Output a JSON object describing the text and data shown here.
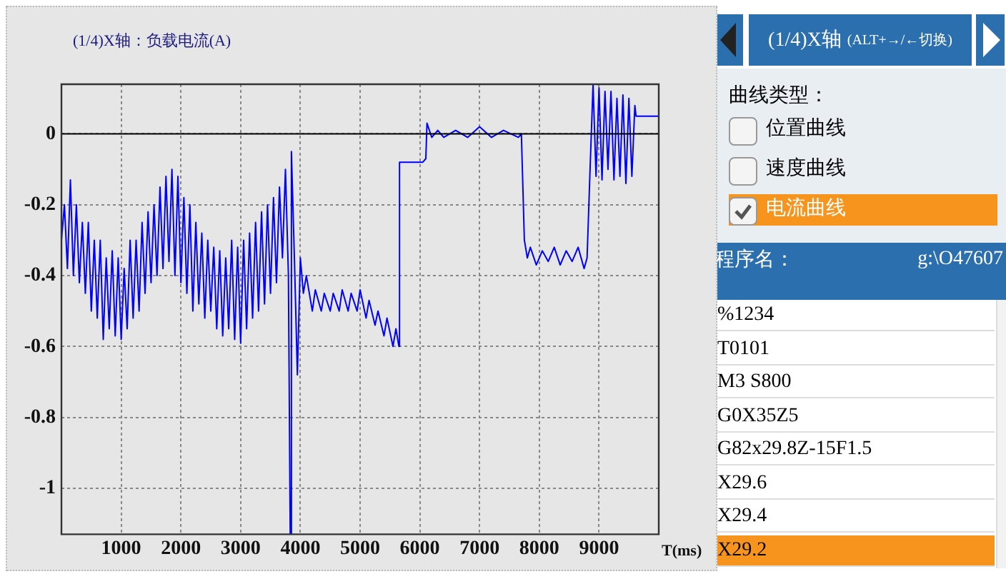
{
  "chart_data": [
    {
      "type": "line",
      "title": "(1/4)X轴：负载电流(A)",
      "xlabel": "T(ms)",
      "xlim": [
        0,
        10000
      ],
      "xticks": [
        1000,
        2000,
        3000,
        4000,
        5000,
        6000,
        7000,
        8000,
        9000
      ],
      "ylim": [
        -1.13,
        0.14
      ],
      "yticks": [
        0,
        -0.2,
        -0.4,
        -0.6,
        -0.8,
        -1
      ],
      "grid": true,
      "legend": false,
      "marker": "none",
      "line_style": "solid",
      "ref_lines": [
        {
          "axis": "y",
          "value": 0,
          "color": "#000000"
        }
      ],
      "series": [
        {
          "color": "#0000ff",
          "x": [
            0,
            50,
            100,
            150,
            200,
            250,
            300,
            350,
            400,
            450,
            500,
            550,
            600,
            650,
            700,
            750,
            800,
            850,
            900,
            950,
            1000,
            1050,
            1100,
            1150,
            1200,
            1250,
            1300,
            1350,
            1400,
            1450,
            1500,
            1550,
            1600,
            1650,
            1700,
            1750,
            1800,
            1850,
            1900,
            1950,
            2000,
            2050,
            2100,
            2150,
            2200,
            2250,
            2300,
            2350,
            2400,
            2450,
            2500,
            2550,
            2600,
            2650,
            2700,
            2750,
            2800,
            2850,
            2900,
            2950,
            3000,
            3050,
            3100,
            3150,
            3200,
            3250,
            3300,
            3350,
            3400,
            3450,
            3500,
            3550,
            3600,
            3650,
            3700,
            3750,
            3800,
            3830,
            3850,
            3900,
            3950,
            4000,
            4050,
            4100,
            4200,
            4250,
            4350,
            4400,
            4500,
            4550,
            4650,
            4700,
            4800,
            4850,
            4950,
            5000,
            5100,
            5150,
            5250,
            5300,
            5400,
            5450,
            5550,
            5600,
            5650,
            5660,
            6050,
            6100,
            6120,
            6200,
            6300,
            6400,
            6600,
            6800,
            7000,
            7200,
            7400,
            7650,
            7700,
            7750,
            7800,
            7850,
            7950,
            8050,
            8150,
            8250,
            8350,
            8450,
            8550,
            8650,
            8750,
            8800,
            8850,
            8900,
            8950,
            9000,
            9050,
            9100,
            9150,
            9200,
            9250,
            9300,
            9350,
            9400,
            9450,
            9500,
            9550,
            9600,
            9620,
            10000
          ],
          "values": [
            -0.3,
            -0.2,
            -0.38,
            -0.13,
            -0.4,
            -0.2,
            -0.42,
            -0.25,
            -0.45,
            -0.25,
            -0.5,
            -0.3,
            -0.52,
            -0.3,
            -0.58,
            -0.35,
            -0.55,
            -0.33,
            -0.57,
            -0.35,
            -0.58,
            -0.38,
            -0.55,
            -0.3,
            -0.52,
            -0.3,
            -0.5,
            -0.25,
            -0.45,
            -0.22,
            -0.42,
            -0.2,
            -0.4,
            -0.15,
            -0.38,
            -0.12,
            -0.36,
            -0.1,
            -0.4,
            -0.12,
            -0.42,
            -0.18,
            -0.45,
            -0.2,
            -0.5,
            -0.25,
            -0.48,
            -0.28,
            -0.52,
            -0.3,
            -0.5,
            -0.32,
            -0.55,
            -0.33,
            -0.57,
            -0.35,
            -0.55,
            -0.3,
            -0.58,
            -0.32,
            -0.59,
            -0.3,
            -0.55,
            -0.28,
            -0.52,
            -0.25,
            -0.5,
            -0.22,
            -0.48,
            -0.2,
            -0.45,
            -0.18,
            -0.42,
            -0.15,
            -0.35,
            -0.1,
            -0.4,
            -1.13,
            -0.05,
            -0.35,
            -0.68,
            -0.35,
            -0.45,
            -0.4,
            -0.5,
            -0.44,
            -0.5,
            -0.45,
            -0.5,
            -0.45,
            -0.5,
            -0.44,
            -0.5,
            -0.45,
            -0.5,
            -0.44,
            -0.52,
            -0.47,
            -0.54,
            -0.5,
            -0.57,
            -0.52,
            -0.6,
            -0.55,
            -0.6,
            -0.08,
            -0.08,
            -0.07,
            0.03,
            -0.01,
            0.01,
            -0.01,
            0.01,
            -0.01,
            0.02,
            -0.01,
            0.01,
            -0.01,
            0,
            -0.3,
            -0.35,
            -0.32,
            -0.37,
            -0.33,
            -0.36,
            -0.32,
            -0.37,
            -0.33,
            -0.36,
            -0.32,
            -0.38,
            -0.35,
            -0.1,
            0.14,
            -0.12,
            0.13,
            -0.13,
            0.12,
            -0.1,
            0.12,
            -0.13,
            0.1,
            -0.12,
            0.11,
            -0.14,
            0.1,
            -0.12,
            0.08,
            0.05,
            0.05
          ]
        }
      ]
    },
    {
      "type": "other",
      "annotations": [
        "(1/4)X轴",
        "(ALT+→/←切换)",
        "曲线类型：",
        "位置曲线",
        "速度曲线",
        "电流曲线",
        "程序名：",
        "g:\\O47607",
        "%1234",
        "T0101",
        "M3 S800",
        "G0X35Z5",
        "G82x29.8Z-15F1.5",
        "X29.6",
        "X29.4",
        "X29.2"
      ]
    }
  ]
}
